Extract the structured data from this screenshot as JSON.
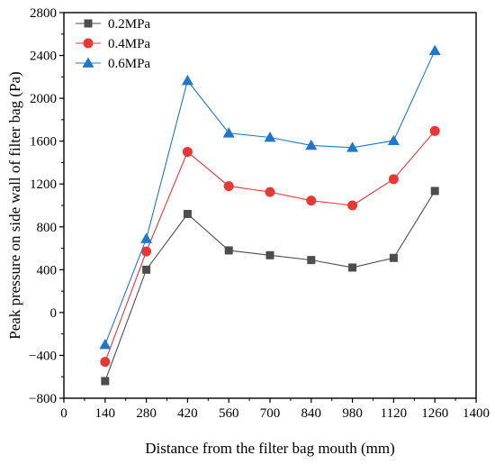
{
  "chart_data": {
    "type": "line",
    "title": "",
    "xlabel": "Distance from the filter bag mouth  (mm)",
    "ylabel": "Peak pressure on side wall of filter bag (Pa)",
    "xlim": [
      0,
      1400
    ],
    "ylim": [
      -800,
      2800
    ],
    "x_ticks": [
      0,
      140,
      280,
      420,
      560,
      700,
      840,
      980,
      1120,
      1260,
      1400
    ],
    "y_ticks": [
      -800,
      -400,
      0,
      400,
      800,
      1200,
      1600,
      2000,
      2400,
      2800
    ],
    "x": [
      140,
      280,
      420,
      560,
      700,
      840,
      980,
      1120,
      1260
    ],
    "legend_position": "top-left",
    "grid": false,
    "series": [
      {
        "name": "0.2MPa",
        "color": "#4d4d4d",
        "marker": "square",
        "values": [
          -640,
          400,
          920,
          580,
          535,
          490,
          420,
          510,
          1135
        ]
      },
      {
        "name": "0.4MPa",
        "color": "#e53935",
        "marker": "circle",
        "values": [
          -460,
          570,
          1500,
          1180,
          1125,
          1045,
          1000,
          1245,
          1695
        ]
      },
      {
        "name": "0.6MPa",
        "color": "#1f77c8",
        "marker": "triangle",
        "values": [
          -300,
          690,
          2165,
          1675,
          1635,
          1560,
          1540,
          1605,
          2445
        ]
      }
    ]
  }
}
